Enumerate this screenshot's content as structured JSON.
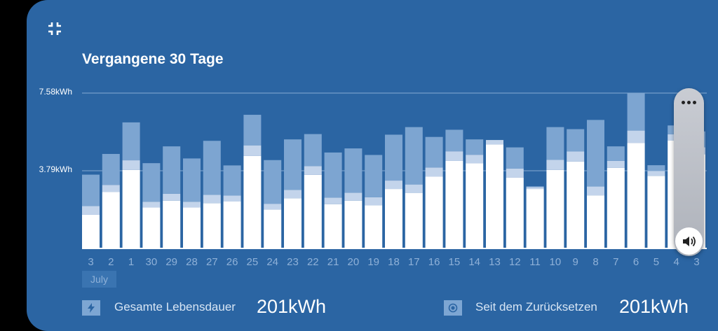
{
  "title": "Vergangene 30 Tage",
  "month_label": "July",
  "stats": {
    "lifetime_label": "Gesamte Lebensdauer",
    "lifetime_value": "201kWh",
    "reset_label": "Seit dem Zurücksetzen",
    "reset_value": "201kWh"
  },
  "colors": {
    "background": "#2b65a3",
    "bar_main": "#ffffff",
    "bar_mid": "#c3d4eb",
    "bar_top": "#7da5d1",
    "gridline": "#9fbde0"
  },
  "icons": {
    "collapse": "collapse-arrows-icon",
    "lifetime": "lightning-icon",
    "reset": "target-icon",
    "volume_menu": "more-dots-icon",
    "volume": "speaker-icon"
  },
  "chart_data": {
    "type": "bar",
    "stacked": true,
    "title": "Vergangene 30 Tage",
    "y_tick_labels": [
      "7.58kWh",
      "3.79kWh"
    ],
    "y_ticks": [
      7.58,
      3.79
    ],
    "ylim": [
      0,
      7.58
    ],
    "grid": true,
    "categories": [
      "3",
      "2",
      "1",
      "30",
      "29",
      "28",
      "27",
      "26",
      "25",
      "24",
      "23",
      "22",
      "21",
      "20",
      "19",
      "18",
      "17",
      "16",
      "15",
      "14",
      "13",
      "12",
      "11",
      "10",
      "9",
      "8",
      "7",
      "6",
      "5",
      "4",
      "3"
    ],
    "series": [
      {
        "values": [
          1.64,
          2.76,
          3.83,
          2.0,
          2.33,
          2.0,
          2.21,
          2.3,
          4.51,
          1.9,
          2.45,
          3.59,
          2.16,
          2.33,
          2.11,
          2.9,
          2.71,
          3.5,
          4.27,
          4.16,
          5.08,
          3.45,
          2.9,
          3.83,
          4.24,
          2.59,
          3.93,
          5.15,
          3.54,
          5.27,
          4.6
        ]
      },
      {
        "values": [
          0.43,
          0.34,
          0.47,
          0.28,
          0.34,
          0.28,
          0.41,
          0.28,
          0.52,
          0.28,
          0.41,
          0.43,
          0.32,
          0.39,
          0.39,
          0.41,
          0.41,
          0.45,
          0.47,
          0.41,
          0.21,
          0.45,
          0.09,
          0.49,
          0.49,
          0.43,
          0.34,
          0.6,
          0.24,
          0.3,
          0.34
        ]
      },
      {
        "values": [
          1.53,
          1.51,
          1.85,
          1.88,
          2.31,
          2.11,
          2.63,
          1.47,
          1.49,
          2.13,
          2.46,
          1.56,
          2.2,
          2.16,
          2.06,
          2.24,
          2.8,
          1.49,
          1.05,
          0.75,
          0.0,
          1.03,
          0.04,
          1.6,
          1.09,
          3.25,
          0.71,
          1.83,
          0.28,
          0.43,
          0.77
        ]
      }
    ]
  }
}
